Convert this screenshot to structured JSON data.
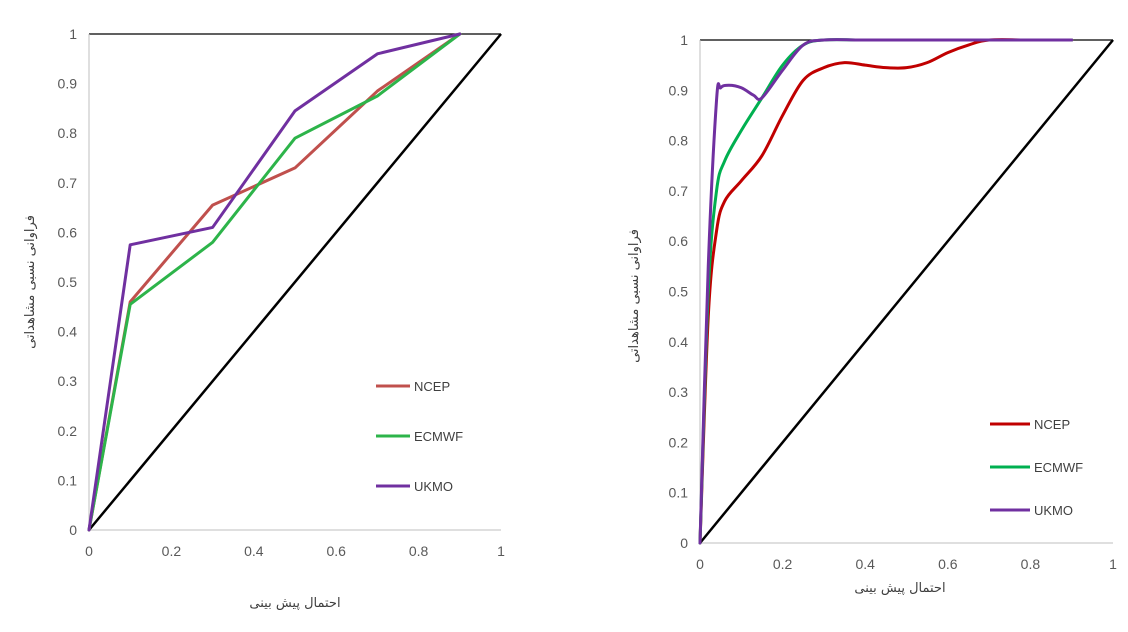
{
  "chart_data": [
    {
      "type": "line",
      "xlabel": "احتمال پیش بینی",
      "ylabel": "فراوانی نسبی مشاهداتی",
      "xlim": [
        0,
        1
      ],
      "ylim": [
        0,
        1
      ],
      "xticks": [
        "0",
        "0.2",
        "0.4",
        "0.6",
        "0.8",
        "1"
      ],
      "yticks": [
        "0",
        "0.1",
        "0.2",
        "0.3",
        "0.4",
        "0.5",
        "0.6",
        "0.7",
        "0.8",
        "0.9",
        "1"
      ],
      "grid": false,
      "legend_position": "bottom-right",
      "diagonal": {
        "x": [
          0,
          1
        ],
        "y": [
          0,
          1
        ],
        "color": "#000000"
      },
      "series": [
        {
          "name": "NCEP",
          "color": "#c0504d",
          "x": [
            0,
            0.1,
            0.3,
            0.5,
            0.7,
            0.9
          ],
          "y": [
            0,
            0.46,
            0.655,
            0.73,
            0.885,
            1.0
          ]
        },
        {
          "name": "ECMWF",
          "color": "#2db44a",
          "x": [
            0,
            0.1,
            0.3,
            0.5,
            0.7,
            0.9
          ],
          "y": [
            0,
            0.455,
            0.58,
            0.79,
            0.875,
            1.0
          ]
        },
        {
          "name": "UKMO",
          "color": "#7030a0",
          "x": [
            0,
            0.1,
            0.3,
            0.5,
            0.7,
            0.9
          ],
          "y": [
            0,
            0.575,
            0.61,
            0.845,
            0.96,
            1.0
          ]
        }
      ]
    },
    {
      "type": "line",
      "xlabel": "احتمال پیش بینی",
      "ylabel": "فراوانی نسبی مشاهداتی",
      "xlim": [
        0,
        1
      ],
      "ylim": [
        0,
        1
      ],
      "xticks": [
        "0",
        "0.2",
        "0.4",
        "0.6",
        "0.8",
        "1"
      ],
      "yticks": [
        "0",
        "0.1",
        "0.2",
        "0.3",
        "0.4",
        "0.5",
        "0.6",
        "0.7",
        "0.8",
        "0.9",
        "1"
      ],
      "grid": false,
      "legend_position": "bottom-right",
      "diagonal": {
        "x": [
          0,
          1
        ],
        "y": [
          0,
          1
        ],
        "color": "#000000"
      },
      "series": [
        {
          "name": "NCEP",
          "color": "#c00000",
          "x": [
            0,
            0.02,
            0.04,
            0.06,
            0.1,
            0.15,
            0.2,
            0.25,
            0.3,
            0.35,
            0.4,
            0.45,
            0.5,
            0.55,
            0.6,
            0.65,
            0.7,
            0.8,
            0.9
          ],
          "y": [
            0,
            0.45,
            0.62,
            0.68,
            0.72,
            0.77,
            0.85,
            0.92,
            0.945,
            0.955,
            0.95,
            0.945,
            0.945,
            0.955,
            0.975,
            0.99,
            1.0,
            1.0,
            1.0
          ]
        },
        {
          "name": "ECMWF",
          "color": "#00b050",
          "x": [
            0,
            0.02,
            0.04,
            0.06,
            0.1,
            0.15,
            0.2,
            0.25,
            0.3,
            0.4,
            0.5,
            0.7,
            0.9
          ],
          "y": [
            0,
            0.5,
            0.7,
            0.76,
            0.82,
            0.885,
            0.95,
            0.99,
            1.0,
            1.0,
            1.0,
            1.0,
            1.0
          ]
        },
        {
          "name": "UKMO",
          "color": "#7030a0",
          "x": [
            0,
            0.02,
            0.04,
            0.05,
            0.07,
            0.1,
            0.13,
            0.15,
            0.2,
            0.25,
            0.3,
            0.4,
            0.5,
            0.7,
            0.9
          ],
          "y": [
            0,
            0.55,
            0.88,
            0.905,
            0.91,
            0.905,
            0.89,
            0.885,
            0.94,
            0.99,
            1.0,
            1.0,
            1.0,
            1.0,
            1.0
          ]
        }
      ]
    }
  ]
}
